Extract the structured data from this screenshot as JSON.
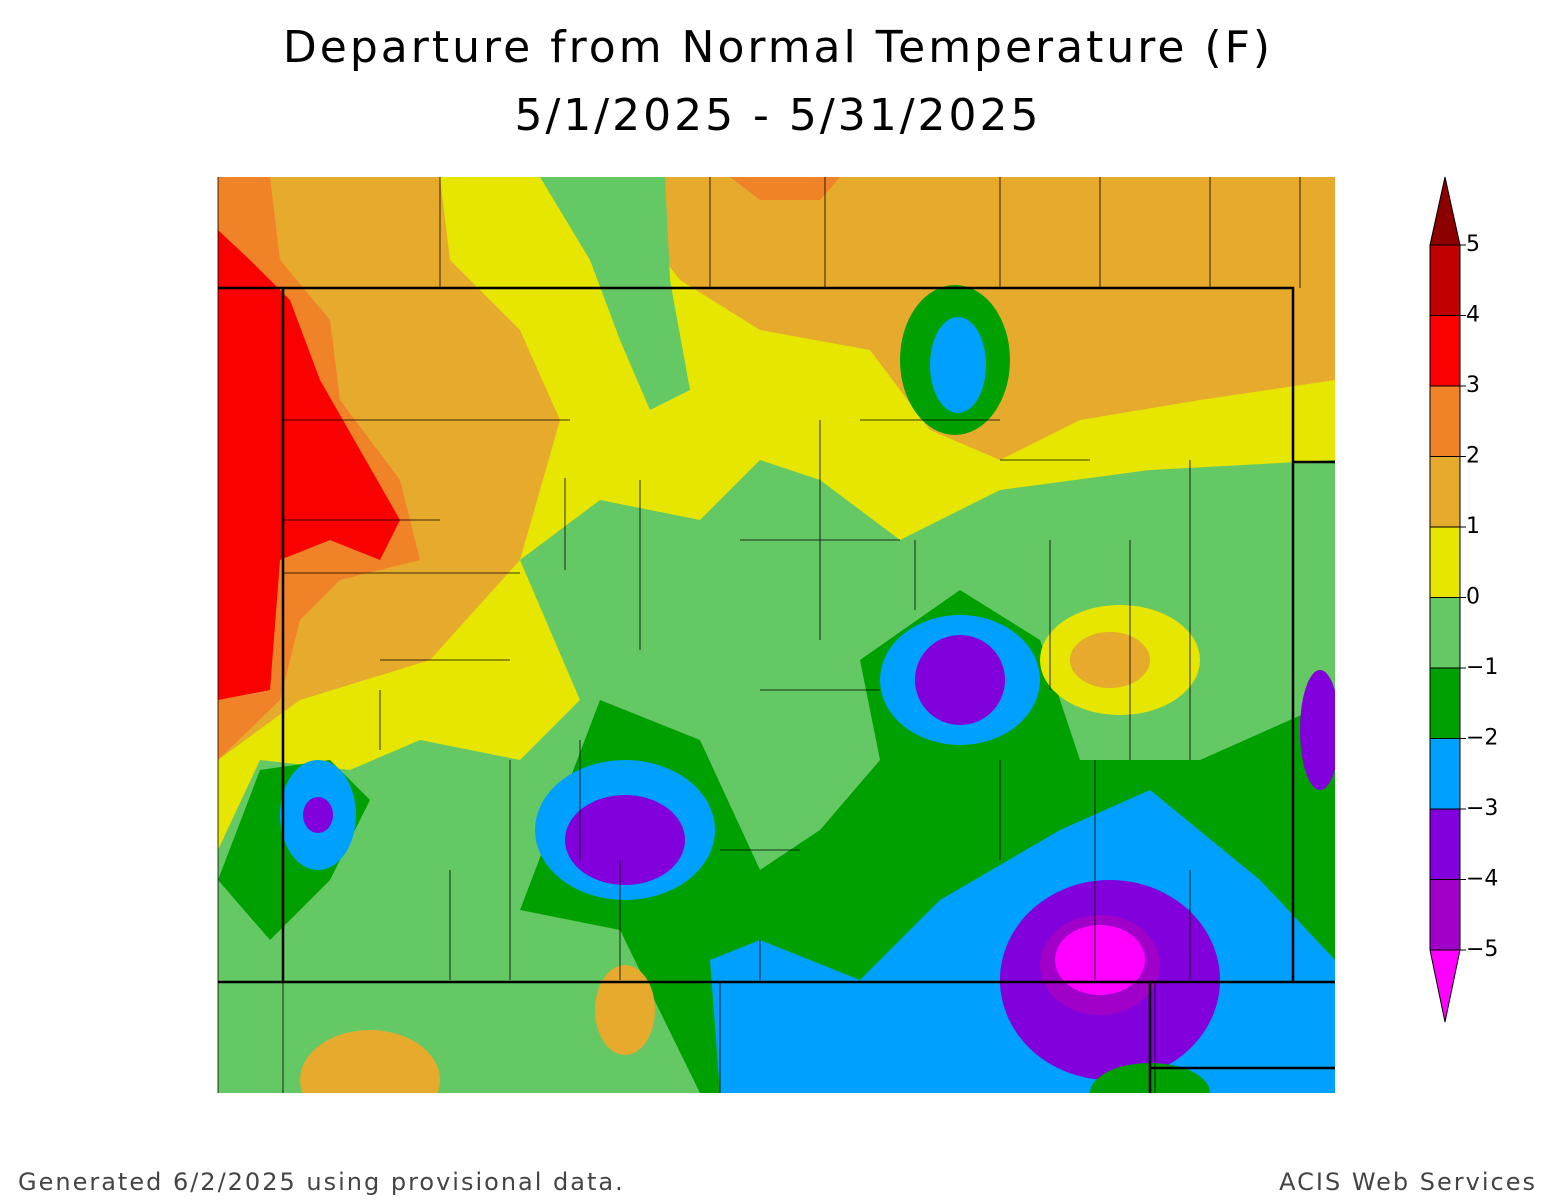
{
  "title": "Departure from Normal Temperature (F)",
  "subtitle": "5/1/2025 - 5/31/2025",
  "legend": {
    "range": [
      -5,
      5
    ],
    "ticks": [
      {
        "value": -5,
        "label": "−5"
      },
      {
        "value": -4,
        "label": "−4"
      },
      {
        "value": -3,
        "label": "−3"
      },
      {
        "value": -2,
        "label": "−2"
      },
      {
        "value": -1,
        "label": "−1"
      },
      0,
      1,
      2,
      3,
      4,
      5
    ],
    "colors": [
      "#ff00ff",
      "#a000c8",
      "#8200dc",
      "#00a0ff",
      "#00a000",
      "#64c864",
      "#e6e600",
      "#e6aa2d",
      "#f08228",
      "#fa0000",
      "#c00000",
      "#8c0000"
    ]
  },
  "footer": {
    "left": "Generated 6/2/2025 using provisional data.",
    "right": "ACIS Web Services"
  }
}
